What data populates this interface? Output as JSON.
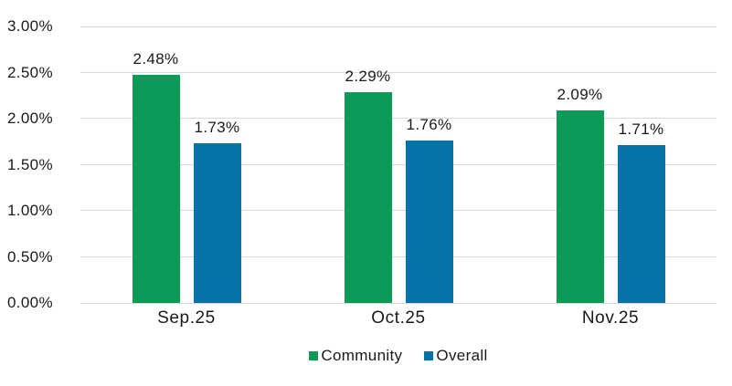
{
  "chart_data": {
    "type": "bar",
    "categories": [
      "Sep.25",
      "Oct.25",
      "Nov.25"
    ],
    "series": [
      {
        "name": "Community",
        "color": "#0B9A57",
        "values": [
          2.48,
          2.29,
          2.09
        ]
      },
      {
        "name": "Overall",
        "color": "#0473A8",
        "values": [
          1.73,
          1.76,
          1.71
        ]
      }
    ],
    "data_labels": [
      "2.48%",
      "1.73%",
      "2.29%",
      "1.76%",
      "2.09%",
      "1.71%"
    ],
    "value_suffix": "%",
    "ylim": [
      0,
      3
    ],
    "ytick_labels": [
      "3.00%",
      "2.50%",
      "2.00%",
      "1.50%",
      "1.00%",
      "0.50%",
      "0.00%"
    ],
    "grid": true,
    "legend_position": "bottom",
    "title": "",
    "xlabel": "",
    "ylabel": "",
    "colors": {
      "grid": "#D9D9D9",
      "text": "#1A1A1A",
      "background": "#FFFFFF"
    }
  }
}
